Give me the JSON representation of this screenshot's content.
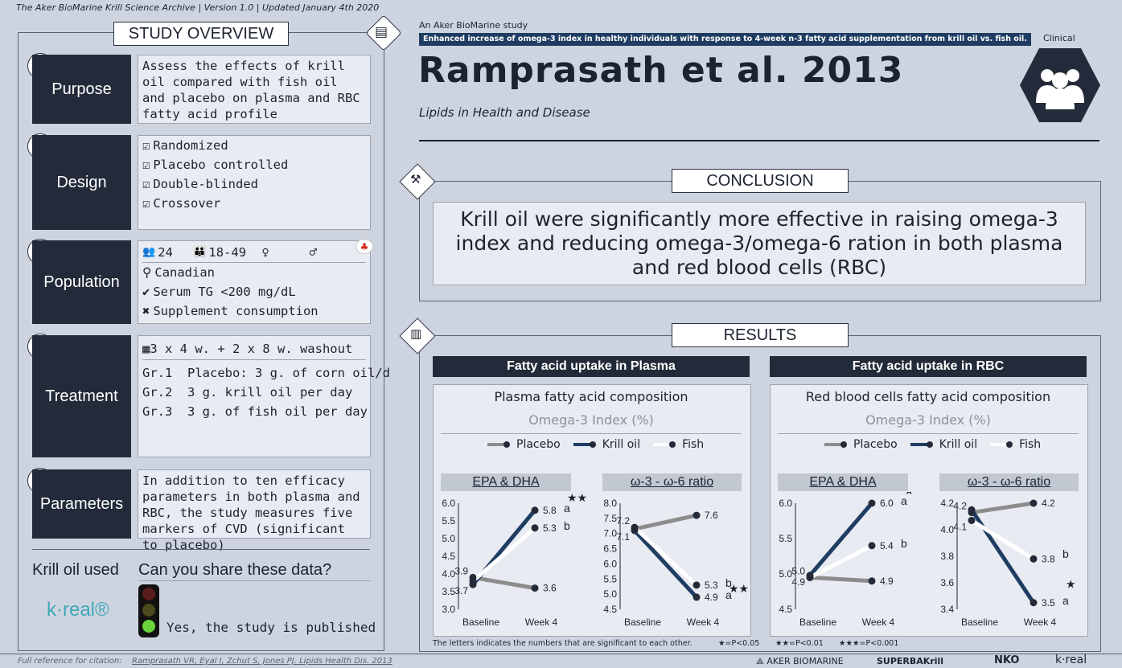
{
  "archive": {
    "title": "The Aker BioMarine Krill Science Archive | Version 1.0 | Updated January 4th 2020"
  },
  "overview": {
    "header": "STUDY OVERVIEW",
    "purpose": {
      "label": "Purpose",
      "text": "Assess the effects of krill oil compared with fish oil and placebo on plasma and RBC fatty acid profile"
    },
    "design": {
      "label": "Design",
      "items": [
        "Randomized",
        "Placebo controlled",
        "Double-blinded",
        "Crossover"
      ]
    },
    "population": {
      "label": "Population",
      "count": "24",
      "age": "18-49",
      "female": "",
      "male": "",
      "items": [
        "Canadian",
        "Serum TG <200 mg/dL",
        "Supplement consumption"
      ]
    },
    "treatment": {
      "label": "Treatment",
      "schedule": "3 x 4 w. + 2 x 8 w. washout",
      "groups": [
        "Gr.1  Placebo: 3 g. of corn oil/d",
        "Gr.2  3 g. krill oil per day",
        "Gr.3  3 g. of fish oil per day"
      ]
    },
    "parameters": {
      "label": "Parameters",
      "text": "In addition to ten efficacy parameters in both plasma and RBC, the study measures five markers of CVD (significant to placebo)"
    },
    "krill_used": {
      "label": "Krill oil used",
      "brand": "k·real®"
    },
    "share": {
      "label": "Can you share these data?",
      "answer": "Yes, the study is published"
    }
  },
  "study": {
    "kicker": "An Aker BioMarine study",
    "subtitle": "Enhanced increase of omega-3 index in healthy individuals with response to 4-week n-3 fatty acid supplementation from krill oil vs. fish oil.",
    "title": "Ramprasath et al. 2013",
    "journal": "Lipids in Health and Disease",
    "category": "Clinical"
  },
  "conclusion": {
    "header": "CONCLUSION",
    "text": "Krill oil were significantly more effective in raising omega-3 index and reducing omega-3/omega-6 ration in both plasma and red blood cells (RBC)"
  },
  "results": {
    "header": "RESULTS",
    "plasma": {
      "bar": "Fatty acid uptake in Plasma",
      "title": "Plasma fatty acid composition",
      "sub": "Omega-3 Index (%)"
    },
    "rbc": {
      "bar": "Fatty acid uptake in RBC",
      "title": "Red blood cells fatty acid composition",
      "sub": "Omega-3 Index (%)"
    },
    "legend": [
      "Placebo",
      "Krill oil",
      "Fish"
    ],
    "footnote": "The letters indicates the numbers that are significant to each other.",
    "sig1": "★=P<0.05",
    "sig2": "★★=P<0.01",
    "sig3": "★★★=P<0.001"
  },
  "footer": {
    "citation_label": "Full reference for citation:",
    "citation": "Ramprasath VR, Eyal I, Zchut S, Jones PJ. Lipids Health Dis. 2013",
    "logos": [
      "AKER BIOMARINE",
      "SUPERBAKrill",
      "NKO",
      "k·real"
    ]
  },
  "colors": {
    "placebo": "#8c8c8c",
    "krill": "#1f3d63",
    "fish": "#ffffff",
    "dark": "#232b3a"
  },
  "chart_data": [
    {
      "type": "line",
      "title": "EPA & DHA",
      "panel": "Plasma",
      "x": [
        "Baseline",
        "Week 4"
      ],
      "ylim": [
        3.0,
        6.0
      ],
      "yticks": [
        "3.0",
        "3.5",
        "4.0",
        "4.5",
        "5.0",
        "5.5",
        "6.0"
      ],
      "series": [
        {
          "name": "Placebo",
          "values": [
            3.9,
            3.6
          ]
        },
        {
          "name": "Krill oil",
          "values": [
            3.7,
            5.8
          ]
        },
        {
          "name": "Fish",
          "values": [
            3.8,
            5.3
          ]
        }
      ],
      "labels": [
        {
          "text": "3.9"
        },
        {
          "text": "3.7"
        },
        {
          "text": "5.8"
        },
        {
          "text": "5.3"
        },
        {
          "text": "3.6"
        }
      ],
      "annotations": [
        "a",
        "b",
        "★★"
      ]
    },
    {
      "type": "line",
      "title": "ω-3 - ω-6 ratio",
      "panel": "Plasma",
      "x": [
        "Baseline",
        "Week 4"
      ],
      "ylim": [
        4.5,
        8.0
      ],
      "yticks": [
        "4.5",
        "5.0",
        "5.5",
        "6.0",
        "6.5",
        "7.0",
        "7.5",
        "8.0"
      ],
      "series": [
        {
          "name": "Placebo",
          "values": [
            7.15,
            7.6
          ]
        },
        {
          "name": "Krill oil",
          "values": [
            7.1,
            4.9
          ]
        },
        {
          "name": "Fish",
          "values": [
            7.2,
            5.3
          ]
        }
      ],
      "labels": [
        {
          "text": "7.2"
        },
        {
          "text": "7.1"
        },
        {
          "text": "7.6"
        },
        {
          "text": "5.3"
        },
        {
          "text": "4.9"
        }
      ],
      "annotations": [
        "b",
        "a",
        "★★"
      ]
    },
    {
      "type": "line",
      "title": "EPA & DHA",
      "panel": "RBC",
      "x": [
        "Baseline",
        "Week 4"
      ],
      "ylim": [
        4.5,
        6.0
      ],
      "yticks": [
        "4.5",
        "5.0",
        "5.5",
        "6.0"
      ],
      "series": [
        {
          "name": "Placebo",
          "values": [
            4.95,
            4.9
          ]
        },
        {
          "name": "Krill oil",
          "values": [
            4.98,
            6.0
          ]
        },
        {
          "name": "Fish",
          "values": [
            4.95,
            5.4
          ]
        }
      ],
      "labels": [
        {
          "text": "5.0"
        },
        {
          "text": "4.9"
        },
        {
          "text": "6.0"
        },
        {
          "text": "5.4"
        },
        {
          "text": "4.9"
        }
      ],
      "annotations": [
        "a",
        "b",
        "★"
      ]
    },
    {
      "type": "line",
      "title": "ω-3 - ω-6 ratio",
      "panel": "RBC",
      "x": [
        "Baseline",
        "Week 4"
      ],
      "ylim": [
        3.4,
        4.2
      ],
      "yticks": [
        "3.4",
        "3.6",
        "3.8",
        "4.0",
        "4.2"
      ],
      "series": [
        {
          "name": "Placebo",
          "values": [
            4.13,
            4.2
          ]
        },
        {
          "name": "Krill oil",
          "values": [
            4.15,
            3.45
          ]
        },
        {
          "name": "Fish",
          "values": [
            4.07,
            3.78
          ]
        }
      ],
      "labels": [
        {
          "text": "4.2"
        },
        {
          "text": "4.1"
        },
        {
          "text": "4.2"
        },
        {
          "text": "3.8"
        },
        {
          "text": "3.5"
        }
      ],
      "annotations": [
        "b",
        "a",
        "★"
      ]
    }
  ]
}
